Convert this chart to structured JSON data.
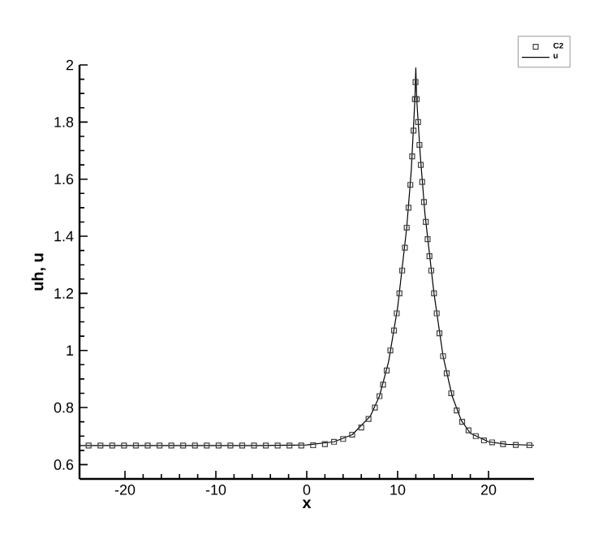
{
  "chart_data": {
    "type": "line",
    "xlabel": "x",
    "ylabel": "uh, u",
    "xlim": [
      -25,
      25
    ],
    "ylim": [
      0.55,
      2
    ],
    "xticks": [
      -20,
      -10,
      0,
      10,
      20
    ],
    "yticks": [
      0.6,
      0.8,
      1,
      1.2,
      1.4,
      1.6,
      1.8,
      2
    ],
    "legend": "top right",
    "grid": false,
    "series": [
      {
        "name": "C2",
        "type": "scatter",
        "marker": "square",
        "color": "#404040",
        "x": [
          -24,
          -22.7,
          -21.4,
          -20.1,
          -18.8,
          -17.5,
          -16.2,
          -14.9,
          -13.6,
          -12.3,
          -11,
          -9.7,
          -8.4,
          -7.1,
          -5.8,
          -4.5,
          -3.2,
          -1.9,
          -0.6,
          0.7,
          2,
          3,
          4,
          5,
          6,
          6.8,
          7.5,
          8,
          8.4,
          8.8,
          9.2,
          9.6,
          9.9,
          10.2,
          10.5,
          10.8,
          11,
          11.2,
          11.4,
          11.6,
          11.75,
          11.9,
          11.97,
          12.1,
          12.25,
          12.4,
          12.55,
          12.7,
          12.9,
          13.1,
          13.3,
          13.5,
          13.7,
          14,
          14.3,
          14.6,
          15,
          15.4,
          15.9,
          16.5,
          17.1,
          17.8,
          18.6,
          19.5,
          20.4,
          21.6,
          23,
          24.5
        ],
        "values": [
          0.667,
          0.667,
          0.667,
          0.667,
          0.667,
          0.667,
          0.667,
          0.667,
          0.667,
          0.667,
          0.667,
          0.667,
          0.667,
          0.667,
          0.667,
          0.667,
          0.667,
          0.667,
          0.667,
          0.668,
          0.672,
          0.68,
          0.69,
          0.705,
          0.73,
          0.76,
          0.8,
          0.84,
          0.88,
          0.93,
          1.0,
          1.07,
          1.13,
          1.2,
          1.28,
          1.36,
          1.43,
          1.5,
          1.58,
          1.68,
          1.77,
          1.88,
          1.94,
          1.88,
          1.8,
          1.72,
          1.65,
          1.59,
          1.52,
          1.45,
          1.39,
          1.33,
          1.28,
          1.2,
          1.13,
          1.06,
          0.98,
          0.92,
          0.85,
          0.79,
          0.75,
          0.72,
          0.7,
          0.685,
          0.678,
          0.672,
          0.669,
          0.668
        ]
      },
      {
        "name": "u",
        "color": "#000000",
        "line_style": "solid",
        "x": [
          -25,
          -5,
          0,
          3,
          5,
          7,
          8,
          9,
          10,
          11,
          11.5,
          11.9,
          12,
          12.1,
          12.5,
          13,
          14,
          15,
          16,
          17,
          18,
          20,
          22,
          25
        ],
        "values": [
          0.667,
          0.667,
          0.669,
          0.68,
          0.705,
          0.77,
          0.84,
          0.96,
          1.15,
          1.43,
          1.63,
          1.88,
          1.99,
          1.88,
          1.68,
          1.48,
          1.2,
          0.98,
          0.84,
          0.755,
          0.71,
          0.68,
          0.671,
          0.668
        ]
      }
    ]
  }
}
